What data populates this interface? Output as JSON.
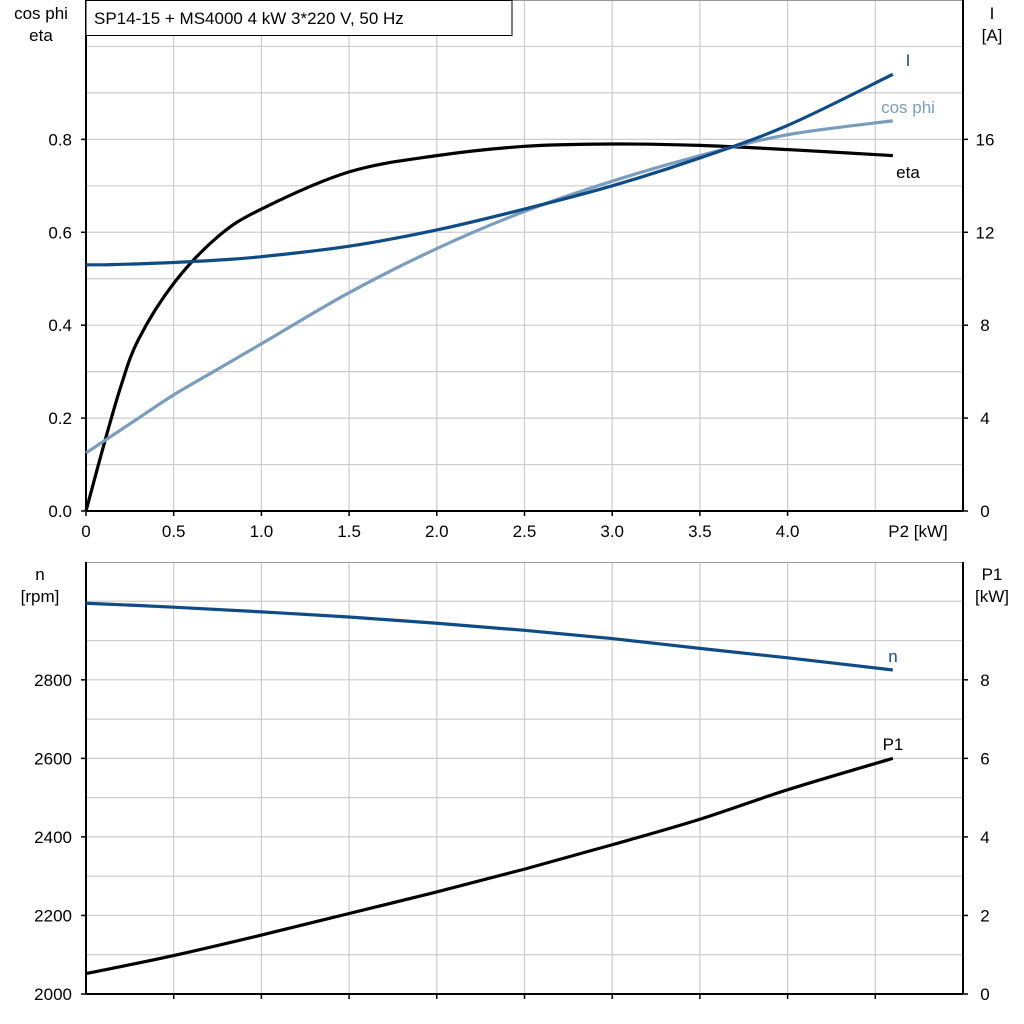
{
  "title": "SP14-15 + MS4000   4 kW   3*220 V, 50 Hz",
  "colors": {
    "I": "#0f4c86",
    "cos_phi": "#7a9cbd",
    "eta": "#000000",
    "n": "#0f4c86",
    "P1": "#000000",
    "grid": "#cccccc"
  },
  "chart_data": [
    {
      "type": "line",
      "title": "SP14-15 + MS4000   4 kW   3*220 V, 50 Hz",
      "xlabel": "P2 [kW]",
      "xlim": [
        0,
        5
      ],
      "xticks": [
        "0",
        "0.5",
        "1.0",
        "1.5",
        "2.0",
        "2.5",
        "3.0",
        "3.5",
        "4.0"
      ],
      "ylabel_left": [
        "cos phi",
        "eta"
      ],
      "ylim_left": [
        0,
        1.1
      ],
      "yticks_left": [
        "0.0",
        "0.2",
        "0.4",
        "0.6",
        "0.8"
      ],
      "ylabel_right": [
        "I",
        "[A]"
      ],
      "ylim_right": [
        0,
        22
      ],
      "yticks_right": [
        "0",
        "4",
        "8",
        "12",
        "16"
      ],
      "grid": true,
      "x": [
        0,
        0.1,
        0.2,
        0.3,
        0.5,
        0.75,
        1.0,
        1.5,
        2.0,
        2.5,
        3.0,
        3.5,
        4.0,
        4.6
      ],
      "series": [
        {
          "name": "eta",
          "axis": "left",
          "values": [
            0,
            0.14,
            0.27,
            0.37,
            0.49,
            0.59,
            0.65,
            0.73,
            0.765,
            0.785,
            0.79,
            0.787,
            0.778,
            0.765
          ]
        },
        {
          "name": "cos phi",
          "axis": "left",
          "values": [
            0.125,
            0.15,
            0.175,
            0.2,
            0.25,
            0.305,
            0.36,
            0.47,
            0.565,
            0.645,
            0.71,
            0.765,
            0.81,
            0.84
          ]
        },
        {
          "name": "I",
          "axis": "right",
          "values": [
            10.6,
            10.6,
            10.62,
            10.64,
            10.7,
            10.8,
            10.95,
            11.4,
            12.1,
            13.0,
            14.0,
            15.2,
            16.6,
            18.8
          ]
        }
      ]
    },
    {
      "type": "line",
      "xlim": [
        0,
        5
      ],
      "ylabel_left": [
        "n",
        "[rpm]"
      ],
      "ylim_left": [
        2000,
        3100
      ],
      "yticks_left": [
        "2000",
        "2200",
        "2400",
        "2600",
        "2800"
      ],
      "ylabel_right": [
        "P1",
        "[kW]"
      ],
      "ylim_right": [
        0,
        11
      ],
      "yticks_right": [
        "0",
        "2",
        "4",
        "6",
        "8"
      ],
      "grid": true,
      "x": [
        0,
        0.5,
        1.0,
        1.5,
        2.0,
        2.5,
        3.0,
        3.5,
        4.0,
        4.6
      ],
      "series": [
        {
          "name": "n",
          "axis": "left",
          "values": [
            2995,
            2985,
            2973,
            2960,
            2944,
            2926,
            2905,
            2880,
            2856,
            2825
          ]
        },
        {
          "name": "P1",
          "axis": "right",
          "values": [
            0.52,
            0.98,
            1.5,
            2.05,
            2.6,
            3.18,
            3.8,
            4.45,
            5.2,
            6.0
          ]
        }
      ]
    }
  ]
}
